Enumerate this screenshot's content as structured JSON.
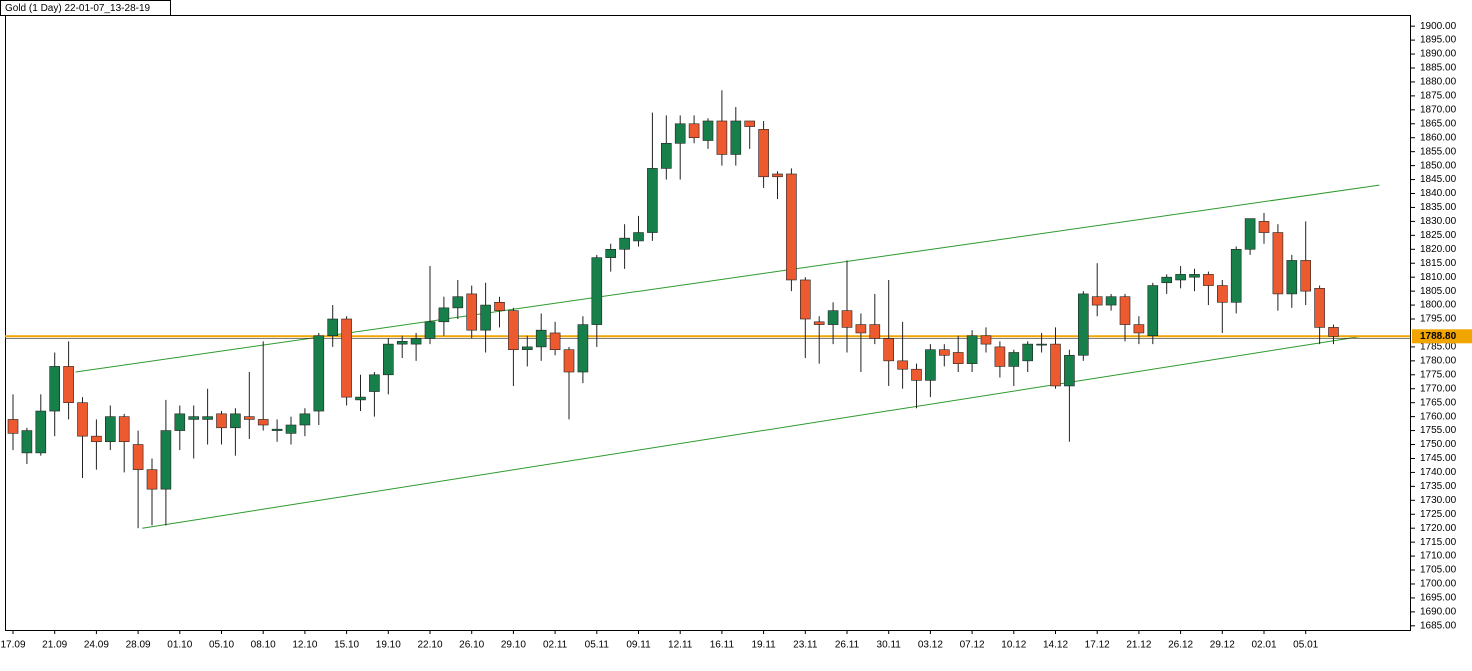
{
  "chart_data": {
    "type": "candlestick",
    "title": "Gold (1 Day) 22-01-07_13-28-19",
    "categories": [
      "17.09",
      null,
      null,
      "21.09",
      null,
      null,
      "24.09",
      null,
      null,
      "28.09",
      null,
      null,
      "01.10",
      null,
      null,
      "05.10",
      null,
      null,
      "08.10",
      null,
      null,
      "12.10",
      null,
      null,
      "15.10",
      null,
      null,
      "19.10",
      null,
      null,
      "22.10",
      null,
      null,
      "26.10",
      null,
      null,
      "29.10",
      null,
      null,
      "02.11",
      null,
      null,
      "05.11",
      null,
      null,
      "09.11",
      null,
      null,
      "12.11",
      null,
      null,
      "16.11",
      null,
      null,
      "19.11",
      null,
      null,
      "23.11",
      null,
      null,
      "26.11",
      null,
      null,
      "30.11",
      null,
      null,
      "03.12",
      null,
      null,
      "07.12",
      null,
      null,
      "10.12",
      null,
      null,
      "14.12",
      null,
      null,
      "17.12",
      null,
      null,
      "21.12",
      null,
      null,
      "26.12",
      null,
      null,
      "29.12",
      null,
      null,
      "02.01",
      null,
      null,
      "05.01",
      null,
      null
    ],
    "open": [
      1759,
      1747,
      1747,
      1762,
      1778,
      1765,
      1753,
      1751,
      1760,
      1750,
      1741,
      1734,
      1755,
      1759,
      1759,
      1761,
      1756,
      1760,
      1759,
      1755,
      1754,
      1757,
      1762,
      1789,
      1795,
      1766,
      1769,
      1775,
      1786,
      1786,
      1788,
      1794,
      1799,
      1804,
      1791,
      1801,
      1798,
      1784,
      1785,
      1790,
      1784,
      1776,
      1793,
      1817,
      1820,
      1823,
      1826,
      1849,
      1858,
      1865,
      1859,
      1866,
      1854,
      1866,
      1863,
      1847,
      1847,
      1809,
      1794,
      1793,
      1798,
      1793,
      1793,
      1788,
      1780,
      1777,
      1773,
      1784,
      1783,
      1779,
      1789,
      1785,
      1778,
      1780,
      1786,
      1786,
      1771,
      1782,
      1803,
      1800,
      1803,
      1793,
      1789,
      1808,
      1809,
      1810,
      1811,
      1807,
      1801,
      1820,
      1830,
      1826,
      1804,
      1816,
      1806,
      1792
    ],
    "high": [
      1768,
      1756,
      1768,
      1783,
      1787,
      1767,
      1759,
      1764,
      1761,
      1755,
      1745,
      1766,
      1764,
      1764,
      1770,
      1762,
      1763,
      1776,
      1787,
      1759,
      1760,
      1763,
      1790,
      1800,
      1796,
      1775,
      1776,
      1788,
      1789,
      1790,
      1814,
      1803,
      1809,
      1807,
      1808,
      1803,
      1799,
      1789,
      1797,
      1794,
      1785,
      1796,
      1818,
      1822,
      1829,
      1832,
      1869,
      1868,
      1868,
      1868,
      1867,
      1877,
      1871,
      1866,
      1866,
      1848,
      1849,
      1810,
      1796,
      1801,
      1816,
      1797,
      1804,
      1809,
      1794,
      1779,
      1786,
      1786,
      1789,
      1791,
      1792,
      1787,
      1784,
      1787,
      1790,
      1792,
      1784,
      1805,
      1815,
      1804,
      1804,
      1796,
      1808,
      1811,
      1814,
      1813,
      1812,
      1809,
      1821,
      1831,
      1833,
      1829,
      1818,
      1830,
      1807,
      1793
    ],
    "low": [
      1748,
      1743,
      1746,
      1753,
      1759,
      1738,
      1741,
      1748,
      1740,
      1720,
      1721,
      1721,
      1748,
      1745,
      1750,
      1750,
      1746,
      1752,
      1755,
      1751,
      1750,
      1753,
      1757,
      1785,
      1764,
      1762,
      1760,
      1768,
      1781,
      1780,
      1786,
      1789,
      1795,
      1788,
      1783,
      1792,
      1771,
      1778,
      1780,
      1782,
      1759,
      1772,
      1785,
      1812,
      1813,
      1821,
      1823,
      1845,
      1845,
      1858,
      1856,
      1850,
      1850,
      1856,
      1842,
      1838,
      1805,
      1781,
      1779,
      1786,
      1783,
      1776,
      1786,
      1771,
      1770,
      1763,
      1767,
      1778,
      1776,
      1776,
      1783,
      1774,
      1771,
      1776,
      1783,
      1770,
      1751,
      1780,
      1796,
      1798,
      1787,
      1786,
      1786,
      1804,
      1806,
      1805,
      1800,
      1790,
      1797,
      1818,
      1822,
      1798,
      1799,
      1800,
      1786,
      1786
    ],
    "close": [
      1754,
      1755,
      1762,
      1778,
      1765,
      1753,
      1751,
      1760,
      1751,
      1741,
      1734,
      1755,
      1761,
      1760,
      1760,
      1756,
      1761,
      1759,
      1757,
      1755.5,
      1757,
      1761,
      1789,
      1795,
      1767,
      1767,
      1775,
      1786,
      1787,
      1788,
      1794,
      1799,
      1803,
      1791,
      1800,
      1798,
      1784,
      1785,
      1791,
      1784,
      1776,
      1793,
      1817,
      1820,
      1824,
      1826,
      1849,
      1858,
      1865,
      1860,
      1866,
      1854,
      1866,
      1864,
      1846,
      1846,
      1809,
      1795,
      1793,
      1798,
      1792,
      1790,
      1788,
      1780,
      1777,
      1773,
      1784,
      1782,
      1779,
      1789,
      1786,
      1778,
      1783,
      1786,
      1786,
      1771,
      1782,
      1804,
      1800,
      1803,
      1793,
      1790,
      1807,
      1810,
      1811,
      1811,
      1807,
      1801,
      1820,
      1831,
      1826,
      1804,
      1816,
      1805,
      1792,
      1788.8
    ],
    "up_color": "#17804a",
    "down_color": "#ee5a2f",
    "last_price": {
      "value": 1788.8,
      "label": "1788.80"
    },
    "last_price_color": "#f0a500",
    "trendlines": [
      {
        "x": [
          4.5,
          98.3
        ],
        "y": [
          1776,
          1843
        ],
        "color": "#2e9a2e"
      },
      {
        "x": [
          9.3,
          97.3
        ],
        "y": [
          1720,
          1789
        ],
        "color": "#2e9a2e"
      }
    ],
    "ylim": [
      1683.5,
      1904
    ],
    "yticks": [
      {
        "value": 1900,
        "label": "1900.00"
      },
      {
        "value": 1895,
        "label": "1895.00"
      },
      {
        "value": 1890,
        "label": "1890.00"
      },
      {
        "value": 1885,
        "label": "1885.00"
      },
      {
        "value": 1880,
        "label": "1880.00"
      },
      {
        "value": 1875,
        "label": "1875.00"
      },
      {
        "value": 1870,
        "label": "1870.00"
      },
      {
        "value": 1865,
        "label": "1865.00"
      },
      {
        "value": 1860,
        "label": "1860.00"
      },
      {
        "value": 1855,
        "label": "1855.00"
      },
      {
        "value": 1850,
        "label": "1850.00"
      },
      {
        "value": 1845,
        "label": "1845.00"
      },
      {
        "value": 1840,
        "label": "1840.00"
      },
      {
        "value": 1835,
        "label": "1835.00"
      },
      {
        "value": 1830,
        "label": "1830.00"
      },
      {
        "value": 1825,
        "label": "1825.00"
      },
      {
        "value": 1820,
        "label": "1820.00"
      },
      {
        "value": 1815,
        "label": "1815.00"
      },
      {
        "value": 1810,
        "label": "1810.00"
      },
      {
        "value": 1805,
        "label": "1805.00"
      },
      {
        "value": 1800,
        "label": "1800.00"
      },
      {
        "value": 1795,
        "label": "1795.00"
      },
      {
        "value": 1785,
        "label": "1785.00"
      },
      {
        "value": 1780,
        "label": "1780.00"
      },
      {
        "value": 1775,
        "label": "1775.00"
      },
      {
        "value": 1770,
        "label": "1770.00"
      },
      {
        "value": 1765,
        "label": "1765.00"
      },
      {
        "value": 1760,
        "label": "1760.00"
      },
      {
        "value": 1755,
        "label": "1755.00"
      },
      {
        "value": 1750,
        "label": "1750.00"
      },
      {
        "value": 1745,
        "label": "1745.00"
      },
      {
        "value": 1740,
        "label": "1740.00"
      },
      {
        "value": 1735,
        "label": "1735.00"
      },
      {
        "value": 1730,
        "label": "1730.00"
      },
      {
        "value": 1725,
        "label": "1725.00"
      },
      {
        "value": 1720,
        "label": "1720.00"
      },
      {
        "value": 1715,
        "label": "1715.00"
      },
      {
        "value": 1710,
        "label": "1710.00"
      },
      {
        "value": 1705,
        "label": "1705.00"
      },
      {
        "value": 1700,
        "label": "1700.00"
      },
      {
        "value": 1695,
        "label": "1695.00"
      },
      {
        "value": 1690,
        "label": "1690.00"
      },
      {
        "value": 1685,
        "label": "1685.00"
      }
    ]
  }
}
